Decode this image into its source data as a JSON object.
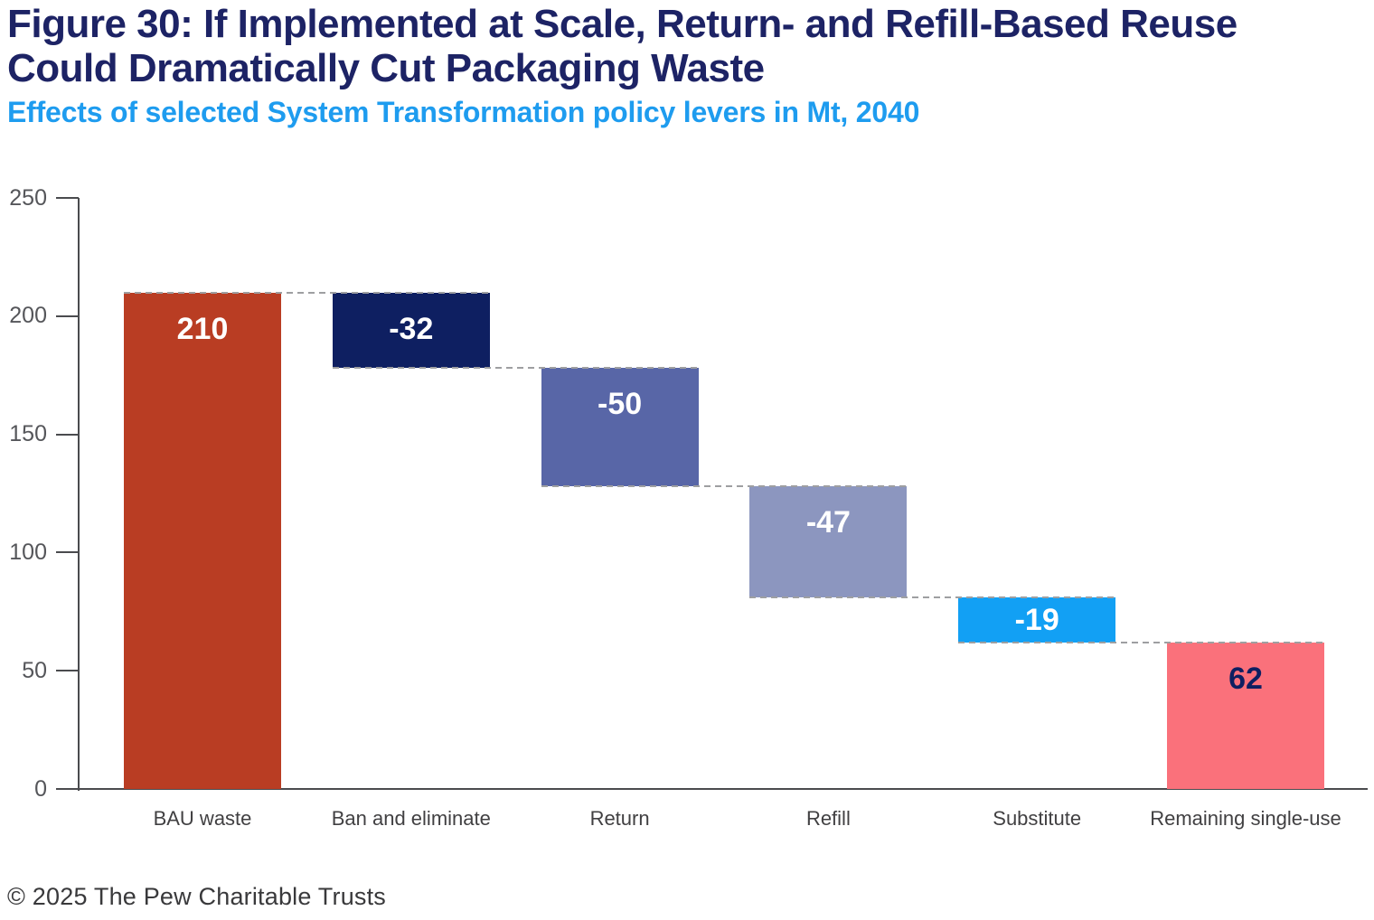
{
  "figure": {
    "title": "Figure 30: If Implemented at Scale, Return- and Refill-Based Reuse\nCould Dramatically Cut Packaging Waste",
    "subtitle": "Effects of selected System Transformation policy levers in Mt, 2040",
    "footer": "© 2025 The Pew Charitable Trusts",
    "title_color": "#1D2365",
    "subtitle_color": "#1E9CEF",
    "footer_color": "#39393B"
  },
  "chart_data": {
    "type": "bar",
    "subtype": "waterfall",
    "title": "Figure 30: If Implemented at Scale, Return- and Refill-Based Reuse Could Dramatically Cut Packaging Waste",
    "subtitle": "Effects of selected System Transformation policy levers in Mt, 2040",
    "unit": "Mt",
    "year": "2040",
    "xlabel": "",
    "ylabel": "",
    "ylim": [
      0,
      250
    ],
    "yticks": [
      "0",
      "50",
      "100",
      "150",
      "200",
      "250"
    ],
    "grid": false,
    "legend": false,
    "categories": [
      "BAU waste",
      "Ban and eliminate",
      "Return",
      "Refill",
      "Substitute",
      "Remaining single-use"
    ],
    "values": [
      210,
      -32,
      -50,
      -47,
      -19,
      62
    ],
    "value_labels": [
      "210",
      "-32",
      "-50",
      "-47",
      "-19",
      "62"
    ],
    "bar_kinds": [
      "absolute",
      "delta",
      "delta",
      "delta",
      "delta",
      "absolute"
    ],
    "cumulative_levels": [
      210,
      178,
      128,
      81,
      62,
      62
    ],
    "bar_colors": [
      "#B93D23",
      "#0E1F61",
      "#5866A7",
      "#8C96BF",
      "#12A0F4",
      "#FA717B"
    ],
    "value_label_colors": [
      "#FFFFFF",
      "#FFFFFF",
      "#FFFFFF",
      "#FFFFFF",
      "#FFFFFF",
      "#0E1F61"
    ],
    "connector_style": "dashed",
    "connector_color": "#9E9FA1",
    "axis_color": "#4A4B4E",
    "tick_label_color": "#55565A",
    "category_label_color": "#414042"
  }
}
